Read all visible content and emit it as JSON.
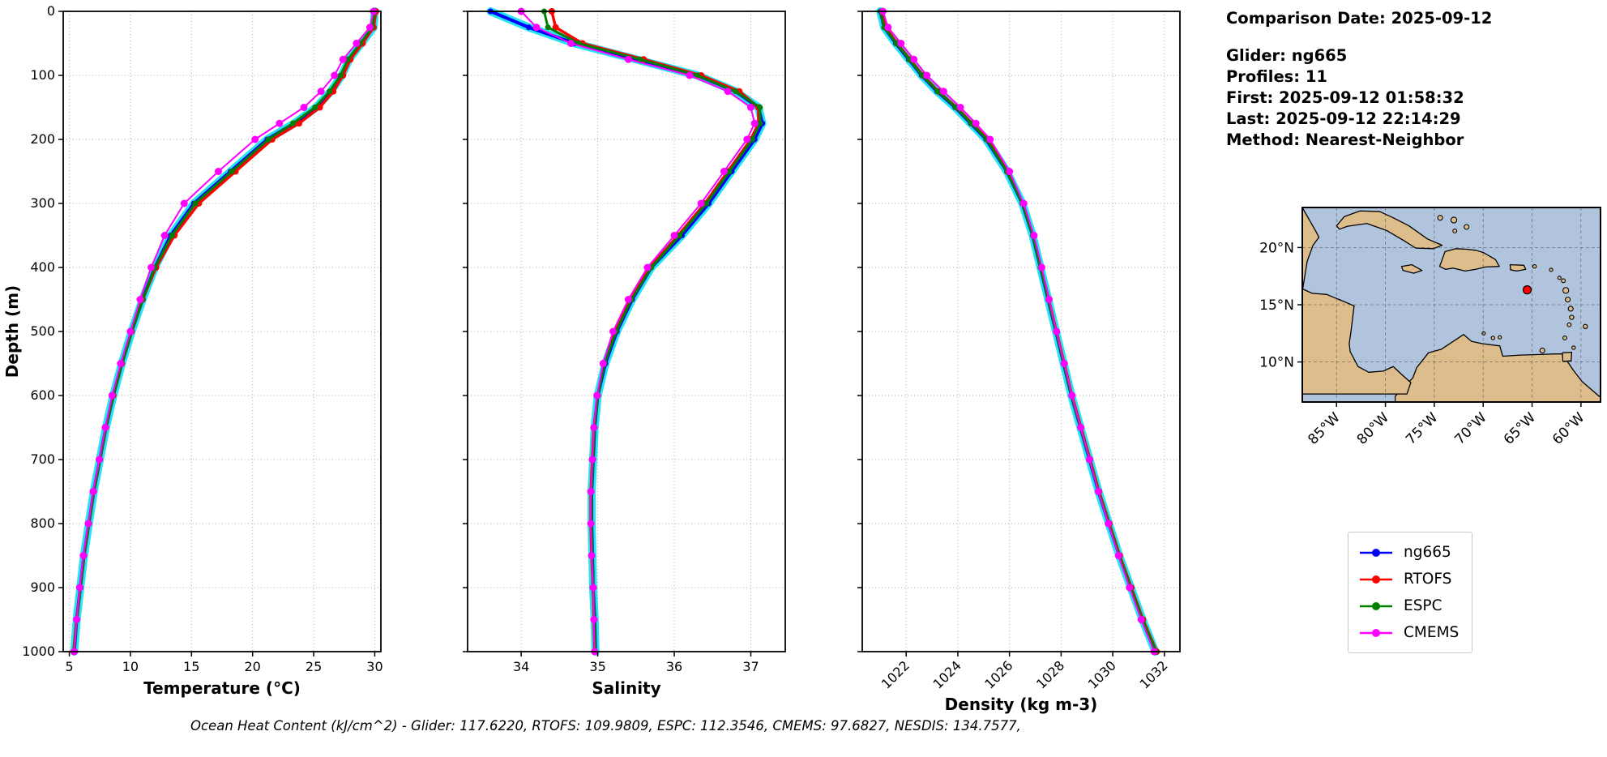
{
  "header": {
    "comparison_date": "Comparison Date: 2025-09-12",
    "glider": "Glider: ng665",
    "profiles": "Profiles: 11",
    "first": "First: 2025-09-12 01:58:32",
    "last": "Last: 2025-09-12 22:14:29",
    "method": "Method: Nearest-Neighbor"
  },
  "caption": "Ocean Heat Content (kJ/cm^2) - Glider: 117.6220,  RTOFS: 109.9809,  ESPC: 112.3546,  CMEMS: 97.6827,  NESDIS: 134.7577,",
  "legend": {
    "entries": [
      {
        "label": "ng665",
        "color": "#0000ff"
      },
      {
        "label": "RTOFS",
        "color": "#ff0000"
      },
      {
        "label": "ESPC",
        "color": "#008000"
      },
      {
        "label": "CMEMS",
        "color": "#ff00ff"
      }
    ]
  },
  "map": {
    "water_color": "#b0c4de",
    "land_color": "#ddbd8c",
    "lon_range": [
      -88.5,
      -58.0
    ],
    "lat_range": [
      6.5,
      23.5
    ],
    "lon_tick_values": [
      -85,
      -80,
      -75,
      -70,
      -65,
      -60
    ],
    "lon_tick_labels": [
      "85°W",
      "80°W",
      "75°W",
      "70°W",
      "65°W",
      "60°W"
    ],
    "lat_tick_values": [
      20,
      15,
      10
    ],
    "lat_tick_labels": [
      "20°N",
      "15°N",
      "10°N"
    ],
    "marker": {
      "lon": -65.5,
      "lat": 16.3,
      "color": "#ff0000"
    },
    "land_polygons": [
      {
        "name": "south-america",
        "pts": [
          [
            -79,
            7
          ],
          [
            -77.2,
            8.6
          ],
          [
            -76.8,
            9.5
          ],
          [
            -75.6,
            10.8
          ],
          [
            -74.3,
            11.1
          ],
          [
            -72,
            12.4
          ],
          [
            -71.2,
            11.8
          ],
          [
            -70.1,
            11.6
          ],
          [
            -68.3,
            11.4
          ],
          [
            -68,
            10.5
          ],
          [
            -66.2,
            10.6
          ],
          [
            -64.2,
            10.65
          ],
          [
            -62.7,
            10.7
          ],
          [
            -61.9,
            10.7
          ],
          [
            -60.8,
            9.3
          ],
          [
            -59.9,
            8.3
          ],
          [
            -58,
            6.9
          ],
          [
            -58,
            6.5
          ],
          [
            -79,
            6.5
          ]
        ]
      },
      {
        "name": "central-america",
        "pts": [
          [
            -88.5,
            16.4
          ],
          [
            -87.5,
            16.0
          ],
          [
            -86,
            15.9
          ],
          [
            -84.3,
            15.3
          ],
          [
            -83.2,
            14.9
          ],
          [
            -83.5,
            12.8
          ],
          [
            -83.7,
            11.6
          ],
          [
            -83.6,
            10.9
          ],
          [
            -82.8,
            9.6
          ],
          [
            -81.7,
            9.1
          ],
          [
            -80.2,
            9.2
          ],
          [
            -79.2,
            9.6
          ],
          [
            -78.2,
            8.8
          ],
          [
            -77.4,
            8.2
          ],
          [
            -77.8,
            7.2
          ],
          [
            -88.5,
            7.2
          ]
        ]
      },
      {
        "name": "yucatan",
        "pts": [
          [
            -88.5,
            23.5
          ],
          [
            -87.1,
            21.4
          ],
          [
            -86.8,
            20.9
          ],
          [
            -87.4,
            20.2
          ],
          [
            -88.0,
            18.8
          ],
          [
            -88.3,
            17.2
          ],
          [
            -88.5,
            16.2
          ]
        ]
      },
      {
        "name": "cuba",
        "pts": [
          [
            -85.0,
            21.9
          ],
          [
            -84.2,
            22.7
          ],
          [
            -82.6,
            23.2
          ],
          [
            -80.6,
            23.15
          ],
          [
            -79.2,
            22.6
          ],
          [
            -77.6,
            21.9
          ],
          [
            -75.7,
            20.75
          ],
          [
            -74.2,
            20.2
          ],
          [
            -75.1,
            19.9
          ],
          [
            -76.9,
            19.95
          ],
          [
            -78.1,
            20.6
          ],
          [
            -79.9,
            21.5
          ],
          [
            -81.9,
            22.1
          ],
          [
            -83.9,
            21.85
          ],
          [
            -84.7,
            21.6
          ]
        ]
      },
      {
        "name": "hispaniola",
        "pts": [
          [
            -74.45,
            18.35
          ],
          [
            -73.9,
            19.65
          ],
          [
            -72.8,
            19.9
          ],
          [
            -71.7,
            19.85
          ],
          [
            -70.7,
            19.75
          ],
          [
            -69.95,
            19.55
          ],
          [
            -68.75,
            18.95
          ],
          [
            -68.35,
            18.35
          ],
          [
            -69.75,
            18.3
          ],
          [
            -70.75,
            18.1
          ],
          [
            -71.85,
            17.95
          ],
          [
            -73.05,
            18.2
          ],
          [
            -73.85,
            18.1
          ]
        ]
      },
      {
        "name": "jamaica",
        "pts": [
          [
            -78.35,
            18.35
          ],
          [
            -77.3,
            18.5
          ],
          [
            -76.25,
            18.0
          ],
          [
            -77.1,
            17.75
          ],
          [
            -78.2,
            18.0
          ]
        ]
      },
      {
        "name": "puerto-rico",
        "pts": [
          [
            -67.25,
            18.5
          ],
          [
            -65.85,
            18.45
          ],
          [
            -65.65,
            18.1
          ],
          [
            -66.55,
            17.95
          ],
          [
            -67.2,
            18.05
          ]
        ]
      },
      {
        "name": "trinidad",
        "pts": [
          [
            -61.9,
            10.8
          ],
          [
            -60.95,
            10.85
          ],
          [
            -61.0,
            10.1
          ],
          [
            -61.85,
            10.05
          ]
        ]
      }
    ],
    "islands": [
      [
        -73.0,
        22.4,
        0.3
      ],
      [
        -74.4,
        22.6,
        0.25
      ],
      [
        -71.7,
        21.8,
        0.25
      ],
      [
        -72.9,
        21.45,
        0.2
      ],
      [
        -64.75,
        18.35,
        0.18
      ],
      [
        -63.05,
        18.05,
        0.15
      ],
      [
        -62.2,
        17.35,
        0.15
      ],
      [
        -61.8,
        17.1,
        0.2
      ],
      [
        -61.55,
        16.25,
        0.3
      ],
      [
        -61.35,
        15.45,
        0.25
      ],
      [
        -61.05,
        14.65,
        0.25
      ],
      [
        -60.95,
        13.9,
        0.22
      ],
      [
        -61.2,
        13.25,
        0.2
      ],
      [
        -61.65,
        12.1,
        0.2
      ],
      [
        -59.55,
        13.1,
        0.22
      ],
      [
        -60.75,
        11.25,
        0.18
      ],
      [
        -63.95,
        11.0,
        0.25
      ],
      [
        -69.0,
        12.1,
        0.18
      ],
      [
        -68.3,
        12.15,
        0.15
      ],
      [
        -69.95,
        12.5,
        0.15
      ]
    ]
  },
  "chart_data": [
    {
      "type": "line",
      "xlabel": "Temperature (°C)",
      "ylabel": "Depth (m)",
      "xlim": [
        4.5,
        30.5
      ],
      "ylim": [
        0,
        1000
      ],
      "xticks": [
        5,
        10,
        15,
        20,
        25,
        30
      ],
      "yticks": [
        0,
        100,
        200,
        300,
        400,
        500,
        600,
        700,
        800,
        900,
        1000
      ],
      "grid": true,
      "show_y_labels": true,
      "xtick_rotation": 0,
      "depths": [
        0,
        25,
        50,
        75,
        100,
        125,
        150,
        175,
        200,
        250,
        300,
        350,
        400,
        450,
        500,
        550,
        600,
        650,
        700,
        750,
        800,
        850,
        900,
        950,
        1000
      ],
      "series": [
        {
          "name": "ng665",
          "color": "#0000ff",
          "halo": "#00e0f0",
          "line_width": 4,
          "marker_r": 3.5,
          "values": [
            30.0,
            29.9,
            28.9,
            27.9,
            27.3,
            26.4,
            25.2,
            23.4,
            21.2,
            18.2,
            15.2,
            13.3,
            12.0,
            11.0,
            10.1,
            9.3,
            8.6,
            8.0,
            7.5,
            7.0,
            6.6,
            6.2,
            5.9,
            5.6,
            5.4
          ]
        },
        {
          "name": "RTOFS",
          "color": "#ff0000",
          "line_width": 3.5,
          "marker_r": 4,
          "values": [
            30.1,
            29.9,
            29.0,
            28.0,
            27.4,
            26.6,
            25.5,
            23.8,
            21.6,
            18.6,
            15.6,
            13.6,
            12.1,
            11.0,
            10.1,
            9.3,
            8.6,
            8.0,
            7.5,
            7.0,
            6.6,
            6.2,
            5.9,
            5.6,
            5.35
          ]
        },
        {
          "name": "ESPC",
          "color": "#008000",
          "line_width": 3,
          "marker_r": 3.5,
          "values": [
            30.0,
            29.8,
            28.8,
            27.8,
            27.2,
            26.3,
            25.1,
            23.3,
            21.3,
            18.3,
            15.3,
            13.4,
            12.0,
            11.0,
            10.1,
            9.3,
            8.6,
            8.0,
            7.5,
            7.0,
            6.6,
            6.2,
            5.9,
            5.6,
            5.4
          ]
        },
        {
          "name": "CMEMS",
          "color": "#ff00ff",
          "line_width": 2,
          "marker_r": 4.5,
          "values": [
            29.9,
            29.6,
            28.5,
            27.4,
            26.7,
            25.6,
            24.2,
            22.2,
            20.2,
            17.2,
            14.4,
            12.8,
            11.7,
            10.8,
            10.0,
            9.2,
            8.5,
            7.95,
            7.45,
            6.95,
            6.55,
            6.15,
            5.85,
            5.6,
            5.4
          ]
        }
      ]
    },
    {
      "type": "line",
      "xlabel": "Salinity",
      "ylabel": "",
      "xlim": [
        33.3,
        37.45
      ],
      "ylim": [
        0,
        1000
      ],
      "xticks": [
        34,
        35,
        36,
        37
      ],
      "yticks": [
        0,
        100,
        200,
        300,
        400,
        500,
        600,
        700,
        800,
        900,
        1000
      ],
      "grid": true,
      "show_y_labels": false,
      "xtick_rotation": 0,
      "depths": [
        0,
        25,
        50,
        75,
        100,
        125,
        150,
        175,
        200,
        250,
        300,
        350,
        400,
        450,
        500,
        550,
        600,
        650,
        700,
        750,
        800,
        850,
        900,
        950,
        1000
      ],
      "series": [
        {
          "name": "ng665",
          "color": "#0000ff",
          "halo": "#00e0f0",
          "line_width": 4,
          "marker_r": 3.5,
          "values": [
            33.6,
            34.1,
            34.7,
            35.5,
            36.3,
            36.8,
            37.1,
            37.15,
            37.05,
            36.75,
            36.45,
            36.1,
            35.7,
            35.45,
            35.25,
            35.1,
            35.0,
            34.96,
            34.94,
            34.92,
            34.92,
            34.93,
            34.94,
            34.96,
            34.97
          ]
        },
        {
          "name": "RTOFS",
          "color": "#ff0000",
          "line_width": 3.5,
          "marker_r": 4,
          "values": [
            34.4,
            34.45,
            34.8,
            35.6,
            36.35,
            36.85,
            37.1,
            37.1,
            37.0,
            36.7,
            36.4,
            36.05,
            35.68,
            35.42,
            35.22,
            35.08,
            35.0,
            34.95,
            34.93,
            34.91,
            34.91,
            34.92,
            34.94,
            34.95,
            34.96
          ]
        },
        {
          "name": "ESPC",
          "color": "#008000",
          "line_width": 3,
          "marker_r": 3.5,
          "values": [
            34.3,
            34.35,
            34.75,
            35.55,
            36.3,
            36.8,
            37.12,
            37.12,
            37.02,
            36.72,
            36.42,
            36.07,
            35.7,
            35.44,
            35.24,
            35.09,
            35.0,
            34.96,
            34.94,
            34.92,
            34.92,
            34.93,
            34.94,
            34.96,
            34.97
          ]
        },
        {
          "name": "CMEMS",
          "color": "#ff00ff",
          "line_width": 2,
          "marker_r": 4.5,
          "values": [
            34.0,
            34.2,
            34.65,
            35.4,
            36.2,
            36.7,
            37.0,
            37.05,
            36.95,
            36.65,
            36.35,
            36.0,
            35.65,
            35.4,
            35.2,
            35.07,
            34.99,
            34.95,
            34.93,
            34.91,
            34.91,
            34.92,
            34.94,
            34.95,
            34.96
          ]
        }
      ]
    },
    {
      "type": "line",
      "xlabel": "Density (kg m-3)",
      "ylabel": "",
      "xlim": [
        1020.3,
        1032.6
      ],
      "ylim": [
        0,
        1000
      ],
      "xticks": [
        1022,
        1024,
        1026,
        1028,
        1030,
        1032
      ],
      "yticks": [
        0,
        100,
        200,
        300,
        400,
        500,
        600,
        700,
        800,
        900,
        1000
      ],
      "grid": true,
      "show_y_labels": false,
      "xtick_rotation": 45,
      "depths": [
        0,
        25,
        50,
        75,
        100,
        125,
        150,
        175,
        200,
        250,
        300,
        350,
        400,
        450,
        500,
        550,
        600,
        650,
        700,
        750,
        800,
        850,
        900,
        950,
        1000
      ],
      "series": [
        {
          "name": "ng665",
          "color": "#0000ff",
          "halo": "#00e0f0",
          "line_width": 4,
          "marker_r": 3.5,
          "values": [
            1021.0,
            1021.15,
            1021.6,
            1022.1,
            1022.6,
            1023.2,
            1023.9,
            1024.5,
            1025.1,
            1025.9,
            1026.5,
            1026.9,
            1027.2,
            1027.5,
            1027.8,
            1028.1,
            1028.4,
            1028.75,
            1029.1,
            1029.45,
            1029.85,
            1030.25,
            1030.7,
            1031.15,
            1031.65
          ]
        },
        {
          "name": "RTOFS",
          "color": "#ff0000",
          "line_width": 3.5,
          "marker_r": 4,
          "values": [
            1021.05,
            1021.2,
            1021.65,
            1022.15,
            1022.65,
            1023.25,
            1023.95,
            1024.55,
            1025.15,
            1025.92,
            1026.52,
            1026.92,
            1027.22,
            1027.52,
            1027.82,
            1028.12,
            1028.42,
            1028.77,
            1029.12,
            1029.47,
            1029.87,
            1030.27,
            1030.72,
            1031.17,
            1031.7
          ]
        },
        {
          "name": "ESPC",
          "color": "#008000",
          "line_width": 3,
          "marker_r": 3.5,
          "values": [
            1021.0,
            1021.15,
            1021.62,
            1022.12,
            1022.62,
            1023.22,
            1023.92,
            1024.52,
            1025.12,
            1025.9,
            1026.5,
            1026.9,
            1027.2,
            1027.5,
            1027.8,
            1028.1,
            1028.4,
            1028.75,
            1029.1,
            1029.45,
            1029.85,
            1030.25,
            1030.7,
            1031.15,
            1031.68
          ]
        },
        {
          "name": "CMEMS",
          "color": "#ff00ff",
          "line_width": 2,
          "marker_r": 4.5,
          "values": [
            1021.1,
            1021.3,
            1021.8,
            1022.3,
            1022.8,
            1023.45,
            1024.1,
            1024.7,
            1025.25,
            1026.0,
            1026.55,
            1026.95,
            1027.25,
            1027.53,
            1027.82,
            1028.12,
            1028.42,
            1028.76,
            1029.1,
            1029.44,
            1029.83,
            1030.22,
            1030.65,
            1031.1,
            1031.6
          ]
        }
      ]
    }
  ]
}
